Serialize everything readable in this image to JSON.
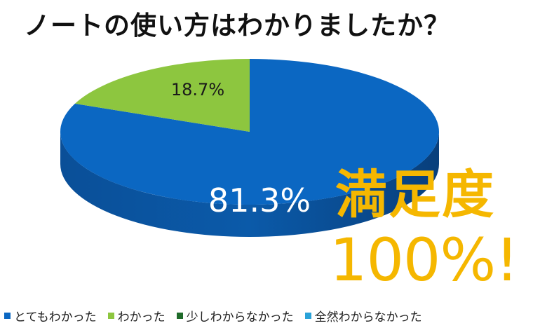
{
  "title": "ノートの使い方はわかりましたか？",
  "chart_data": {
    "type": "pie",
    "series": [
      {
        "name": "とてもわかった",
        "value": 81.3,
        "label": "81.3%",
        "color": "#0b67c2"
      },
      {
        "name": "わかった",
        "value": 18.7,
        "label": "18.7%",
        "color": "#8dc63f"
      },
      {
        "name": "少しわからなかった",
        "value": 0,
        "label": "",
        "color": "#1f6b2a"
      },
      {
        "name": "全然わからなかった",
        "value": 0,
        "label": "",
        "color": "#2aa2d8"
      }
    ],
    "legend_position": "bottom"
  },
  "annotation": {
    "line1": "満足度",
    "line2": "100%!"
  }
}
